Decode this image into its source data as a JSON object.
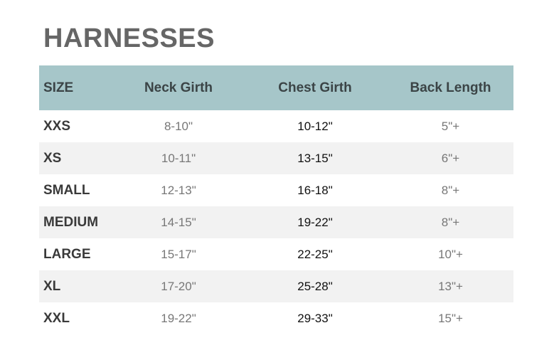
{
  "title": "HARNESSES",
  "headers": [
    "SIZE",
    "Neck Girth",
    "Chest Girth",
    "Back Length"
  ],
  "rows": [
    [
      "XXS",
      "8-10\"",
      "10-12\"",
      "5\"+"
    ],
    [
      "XS",
      "10-11\"",
      "13-15\"",
      "6\"+"
    ],
    [
      "SMALL",
      "12-13\"",
      "16-18\"",
      "8\"+"
    ],
    [
      "MEDIUM",
      "14-15\"",
      "19-22\"",
      "8\"+"
    ],
    [
      "LARGE",
      "15-17\"",
      "22-25\"",
      "10\"+"
    ],
    [
      "XL",
      "17-20\"",
      "25-28\"",
      "13\"+"
    ],
    [
      "XXL",
      "19-22\"",
      "29-33\"",
      "15\"+"
    ]
  ],
  "colors": {
    "header_bg": "#a6c6c9",
    "alt_row_bg": "#f2f2f2",
    "title": "#666666"
  }
}
